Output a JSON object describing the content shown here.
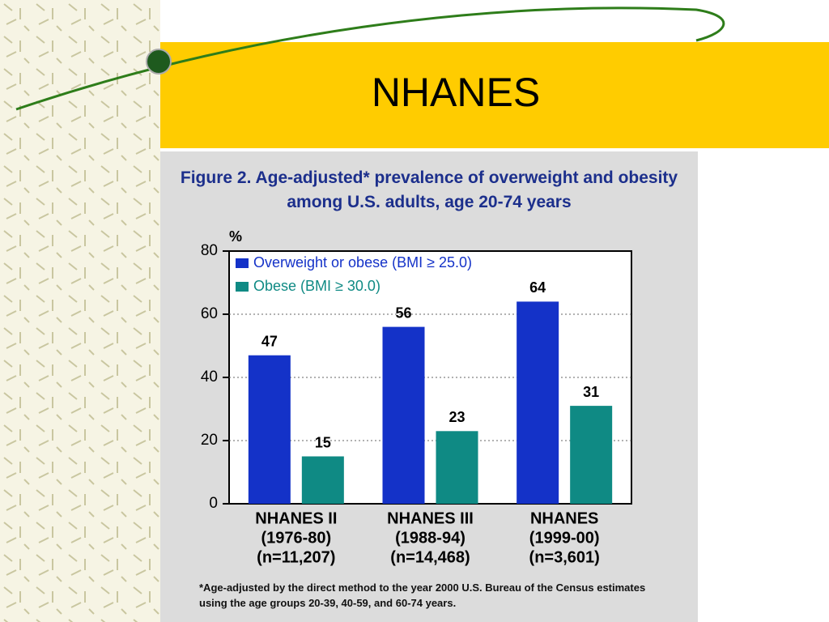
{
  "slide_title": "NHANES",
  "chart_data": {
    "type": "bar",
    "title": "Figure 2. Age-adjusted* prevalence of overweight and obesity among U.S. adults, age 20-74 years",
    "y_label": "%",
    "categories": [
      [
        "NHANES II",
        "(1976-80)",
        "(n=11,207)"
      ],
      [
        "NHANES III",
        "(1988-94)",
        "(n=14,468)"
      ],
      [
        "NHANES",
        "(1999-00)",
        "(n=3,601)"
      ]
    ],
    "series": [
      {
        "name": "Overweight or obese (BMI ≥ 25.0)",
        "color": "#1432c8",
        "values": [
          47,
          56,
          64
        ]
      },
      {
        "name": "Obese (BMI ≥ 30.0)",
        "color": "#0f8a84",
        "values": [
          15,
          23,
          31
        ]
      }
    ],
    "ylim": [
      0,
      80
    ],
    "yticks": [
      0,
      20,
      40,
      60,
      80
    ],
    "grid": true,
    "legend": "upper left",
    "footnote": "*Age-adjusted by the direct method to the year 2000 U.S. Bureau of the Census estimates using the age groups 20-39, 40-59, and 60-74 years."
  }
}
